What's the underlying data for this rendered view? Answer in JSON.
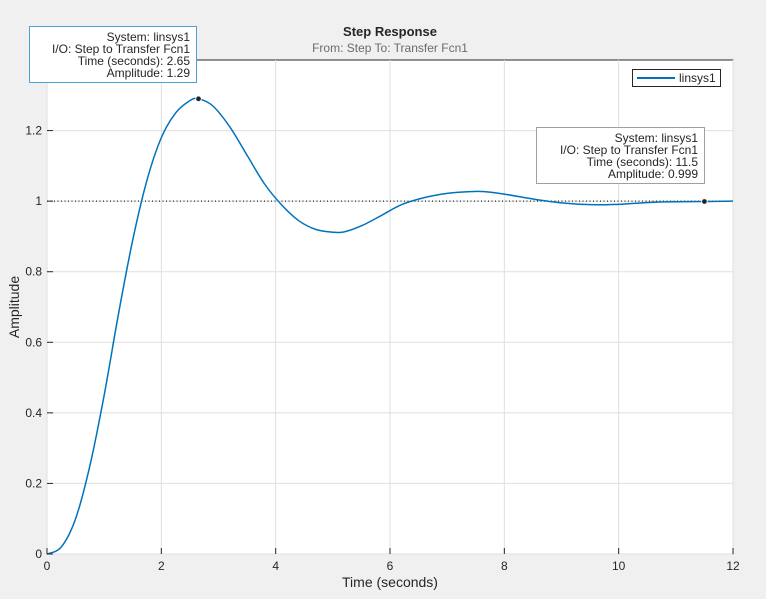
{
  "chart_data": {
    "type": "line",
    "title": "Step Response",
    "subtitle": "From: Step  To: Transfer Fcn1",
    "xlabel": "Time (seconds)",
    "ylabel": "Amplitude",
    "xlim": [
      0,
      12
    ],
    "ylim": [
      0,
      1.4
    ],
    "xticks": [
      "0",
      "2",
      "4",
      "6",
      "8",
      "10",
      "12"
    ],
    "yticks": [
      "0",
      "0.2",
      "0.4",
      "0.6",
      "0.8",
      "1",
      "1.2"
    ],
    "grid": true,
    "legend_placement": "top-right",
    "series": [
      {
        "name": "linsys1",
        "color": "#0072bd",
        "x": [
          0,
          0.25,
          0.5,
          0.75,
          1,
          1.25,
          1.5,
          1.75,
          2,
          2.25,
          2.5,
          2.65,
          2.9,
          3.2,
          3.5,
          3.8,
          4.1,
          4.4,
          4.7,
          5.0,
          5.2,
          5.5,
          5.8,
          6.2,
          6.6,
          7.0,
          7.4,
          7.65,
          8.0,
          8.5,
          9.0,
          9.5,
          10.0,
          10.3,
          10.8,
          11.5,
          12.0
        ],
        "y": [
          0,
          0.02,
          0.1,
          0.25,
          0.45,
          0.68,
          0.89,
          1.06,
          1.18,
          1.25,
          1.285,
          1.29,
          1.27,
          1.21,
          1.13,
          1.05,
          0.99,
          0.945,
          0.92,
          0.912,
          0.913,
          0.93,
          0.955,
          0.99,
          1.01,
          1.022,
          1.027,
          1.027,
          1.02,
          1.006,
          0.995,
          0.99,
          0.991,
          0.994,
          0.998,
          0.999,
          1.0
        ]
      }
    ],
    "reference_line": {
      "y": 1.0,
      "style": "dotted",
      "color": "#262626"
    }
  },
  "legend": {
    "entries": [
      "linsys1"
    ]
  },
  "datatips": [
    {
      "system": "System: linsys1",
      "io": "I/O: Step to Transfer Fcn1",
      "time": "Time (seconds): 2.65",
      "amplitude": "Amplitude: 1.29",
      "x": 2.65,
      "y": 1.29
    },
    {
      "system": "System: linsys1",
      "io": "I/O: Step to Transfer Fcn1",
      "time": "Time (seconds): 11.5",
      "amplitude": "Amplitude: 0.999",
      "x": 11.5,
      "y": 0.999
    }
  ],
  "colors": {
    "background": "#f0f0f0",
    "axes": "#ffffff",
    "line": "#0072bd",
    "grid": "#dfdfdf"
  }
}
